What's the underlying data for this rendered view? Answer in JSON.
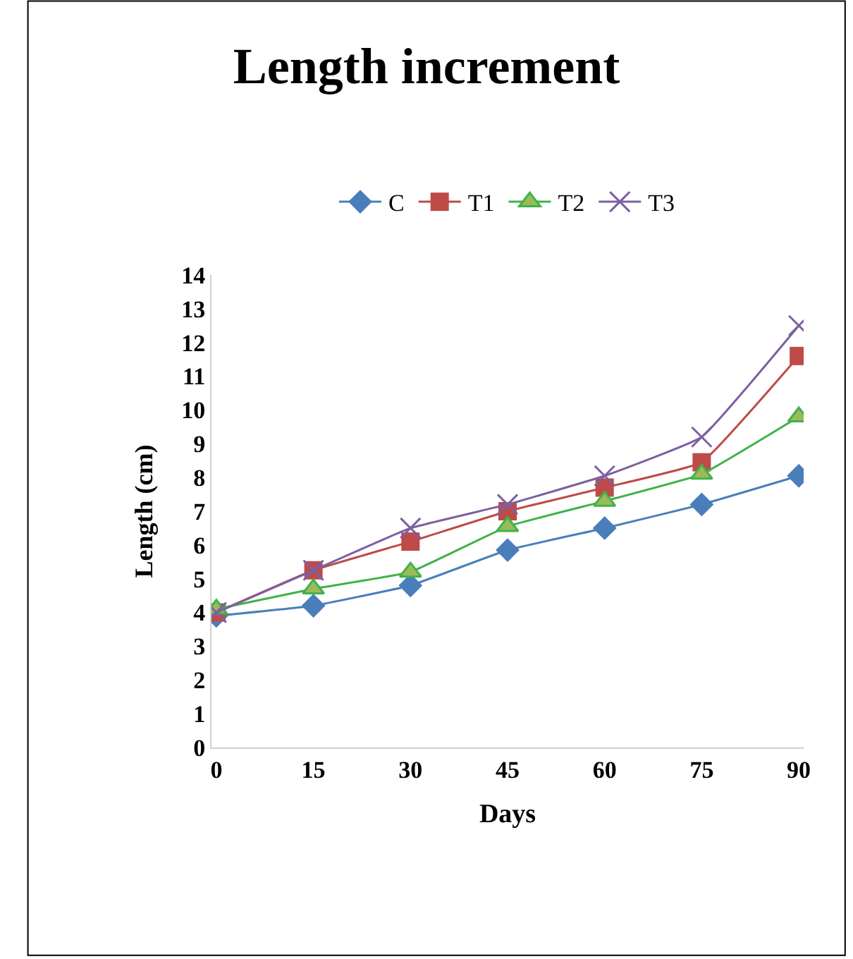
{
  "chart_data": {
    "type": "line",
    "title": "Length increment",
    "xlabel": "Days",
    "ylabel": "Length (cm)",
    "categories": [
      "0",
      "15",
      "30",
      "45",
      "60",
      "75",
      "90"
    ],
    "series": [
      {
        "name": "C",
        "color": "#4a7ebb",
        "marker": "diamond",
        "values": [
          3.9,
          4.2,
          4.8,
          5.85,
          6.5,
          7.2,
          8.05
        ]
      },
      {
        "name": "T1",
        "color": "#be4b48",
        "marker": "square",
        "values": [
          4.0,
          5.25,
          6.1,
          7.0,
          7.7,
          8.45,
          11.6
        ]
      },
      {
        "name": "T2",
        "color": "#3fb24a",
        "marker": "triangle",
        "values": [
          4.1,
          4.7,
          5.2,
          6.55,
          7.3,
          8.1,
          9.8
        ]
      },
      {
        "name": "T3",
        "color": "#7d60a0",
        "marker": "cross",
        "values": [
          4.0,
          5.25,
          6.5,
          7.2,
          8.05,
          9.2,
          12.5
        ]
      }
    ],
    "ylim": [
      0,
      14
    ],
    "yticks": [
      0,
      1,
      2,
      3,
      4,
      5,
      6,
      7,
      8,
      9,
      10,
      11,
      12,
      13,
      14
    ],
    "legend": "top"
  }
}
